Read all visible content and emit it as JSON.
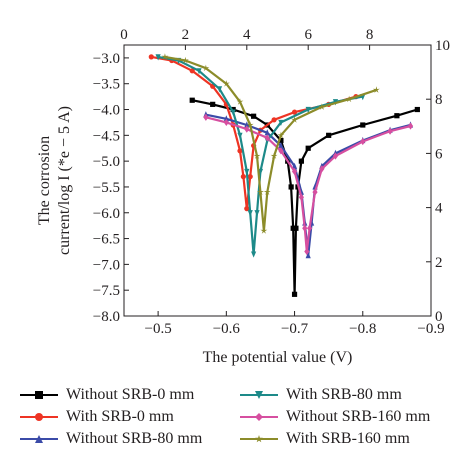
{
  "chart_data": {
    "type": "line",
    "xlabel": "The potential value (V)",
    "ylabel_line1": "The corrosion",
    "ylabel_line2": "current/log I (*e − 5 A)",
    "xlim": [
      -0.45,
      -0.9
    ],
    "ylim": [
      -8.0,
      -2.75
    ],
    "x_ticks": [
      -0.5,
      -0.6,
      -0.7,
      -0.8,
      -0.9
    ],
    "x_tick_labels": [
      "−0.5",
      "−0.6",
      "−0.7",
      "−0.8",
      "−0.9"
    ],
    "y_ticks": [
      -3.0,
      -3.5,
      -4.0,
      -4.5,
      -5.0,
      -5.5,
      -6.0,
      -6.5,
      -7.0,
      -7.5,
      -8.0
    ],
    "y_tick_labels": [
      "−3.0",
      "−3.5",
      "−4.0",
      "−4.5",
      "−5.0",
      "−5.5",
      "−6.0",
      "−6.5",
      "−7.0",
      "−7.5",
      "−8.0"
    ],
    "top_axis": {
      "lim": [
        0,
        10
      ],
      "ticks": [
        0,
        2,
        4,
        6,
        8
      ],
      "tick_labels": [
        "0",
        "2",
        "4",
        "6",
        "8"
      ]
    },
    "right_axis": {
      "lim": [
        0,
        10
      ],
      "ticks": [
        0,
        2,
        4,
        6,
        8,
        10
      ],
      "tick_labels": [
        "0",
        "2",
        "4",
        "6",
        "8",
        "10"
      ]
    },
    "grid": false,
    "legend_position": "bottom",
    "series": [
      {
        "name": "Without SRB-0 mm",
        "color": "#000000",
        "marker": "square",
        "points": [
          [
            -0.55,
            -3.82
          ],
          [
            -0.58,
            -3.9
          ],
          [
            -0.61,
            -4.0
          ],
          [
            -0.64,
            -4.13
          ],
          [
            -0.66,
            -4.3
          ],
          [
            -0.68,
            -4.6
          ],
          [
            -0.69,
            -5.0
          ],
          [
            -0.695,
            -5.5
          ],
          [
            -0.698,
            -6.3
          ],
          [
            -0.7,
            -7.58
          ],
          [
            -0.702,
            -6.3
          ],
          [
            -0.705,
            -5.5
          ],
          [
            -0.71,
            -5.0
          ],
          [
            -0.72,
            -4.75
          ],
          [
            -0.75,
            -4.5
          ],
          [
            -0.8,
            -4.3
          ],
          [
            -0.85,
            -4.12
          ],
          [
            -0.88,
            -4.0
          ]
        ]
      },
      {
        "name": "With SRB-0 mm",
        "color": "#ee3424",
        "marker": "circle",
        "points": [
          [
            -0.49,
            -2.98
          ],
          [
            -0.52,
            -3.05
          ],
          [
            -0.55,
            -3.25
          ],
          [
            -0.58,
            -3.55
          ],
          [
            -0.6,
            -3.9
          ],
          [
            -0.61,
            -4.3
          ],
          [
            -0.62,
            -4.8
          ],
          [
            -0.625,
            -5.3
          ],
          [
            -0.63,
            -5.92
          ],
          [
            -0.635,
            -5.3
          ],
          [
            -0.64,
            -4.7
          ],
          [
            -0.65,
            -4.4
          ],
          [
            -0.67,
            -4.2
          ],
          [
            -0.7,
            -4.05
          ],
          [
            -0.75,
            -3.9
          ],
          [
            -0.79,
            -3.75
          ]
        ]
      },
      {
        "name": "Without SRB-80 mm",
        "color": "#3b4ba8",
        "marker": "triangle-up",
        "points": [
          [
            -0.57,
            -4.1
          ],
          [
            -0.6,
            -4.18
          ],
          [
            -0.63,
            -4.3
          ],
          [
            -0.66,
            -4.45
          ],
          [
            -0.68,
            -4.7
          ],
          [
            -0.7,
            -5.1
          ],
          [
            -0.71,
            -5.6
          ],
          [
            -0.715,
            -6.2
          ],
          [
            -0.72,
            -6.83
          ],
          [
            -0.725,
            -6.2
          ],
          [
            -0.73,
            -5.5
          ],
          [
            -0.74,
            -5.1
          ],
          [
            -0.76,
            -4.85
          ],
          [
            -0.8,
            -4.6
          ],
          [
            -0.84,
            -4.4
          ],
          [
            -0.87,
            -4.3
          ]
        ]
      },
      {
        "name": "With SRB-80 mm",
        "color": "#1d8a89",
        "marker": "triangle-down",
        "points": [
          [
            -0.5,
            -2.98
          ],
          [
            -0.53,
            -3.05
          ],
          [
            -0.56,
            -3.25
          ],
          [
            -0.59,
            -3.6
          ],
          [
            -0.61,
            -4.05
          ],
          [
            -0.62,
            -4.5
          ],
          [
            -0.63,
            -5.2
          ],
          [
            -0.635,
            -6.0
          ],
          [
            -0.64,
            -6.8
          ],
          [
            -0.645,
            -6.0
          ],
          [
            -0.65,
            -5.2
          ],
          [
            -0.66,
            -4.6
          ],
          [
            -0.68,
            -4.25
          ],
          [
            -0.72,
            -4.0
          ],
          [
            -0.76,
            -3.85
          ],
          [
            -0.8,
            -3.75
          ]
        ]
      },
      {
        "name": "Without SRB-160 mm",
        "color": "#d64fa0",
        "marker": "diamond",
        "points": [
          [
            -0.57,
            -4.15
          ],
          [
            -0.6,
            -4.25
          ],
          [
            -0.63,
            -4.38
          ],
          [
            -0.66,
            -4.55
          ],
          [
            -0.68,
            -4.8
          ],
          [
            -0.7,
            -5.2
          ],
          [
            -0.71,
            -5.7
          ],
          [
            -0.715,
            -6.3
          ],
          [
            -0.718,
            -6.75
          ],
          [
            -0.722,
            -6.3
          ],
          [
            -0.73,
            -5.6
          ],
          [
            -0.74,
            -5.15
          ],
          [
            -0.76,
            -4.9
          ],
          [
            -0.8,
            -4.62
          ],
          [
            -0.84,
            -4.42
          ],
          [
            -0.87,
            -4.32
          ]
        ]
      },
      {
        "name": "With SRB-160 mm",
        "color": "#8c8c2a",
        "marker": "star",
        "points": [
          [
            -0.51,
            -2.98
          ],
          [
            -0.54,
            -3.05
          ],
          [
            -0.57,
            -3.2
          ],
          [
            -0.6,
            -3.5
          ],
          [
            -0.62,
            -3.85
          ],
          [
            -0.635,
            -4.3
          ],
          [
            -0.645,
            -4.9
          ],
          [
            -0.65,
            -5.6
          ],
          [
            -0.655,
            -6.35
          ],
          [
            -0.66,
            -5.6
          ],
          [
            -0.67,
            -4.9
          ],
          [
            -0.68,
            -4.5
          ],
          [
            -0.7,
            -4.2
          ],
          [
            -0.74,
            -3.95
          ],
          [
            -0.78,
            -3.8
          ],
          [
            -0.82,
            -3.62
          ]
        ]
      }
    ]
  }
}
